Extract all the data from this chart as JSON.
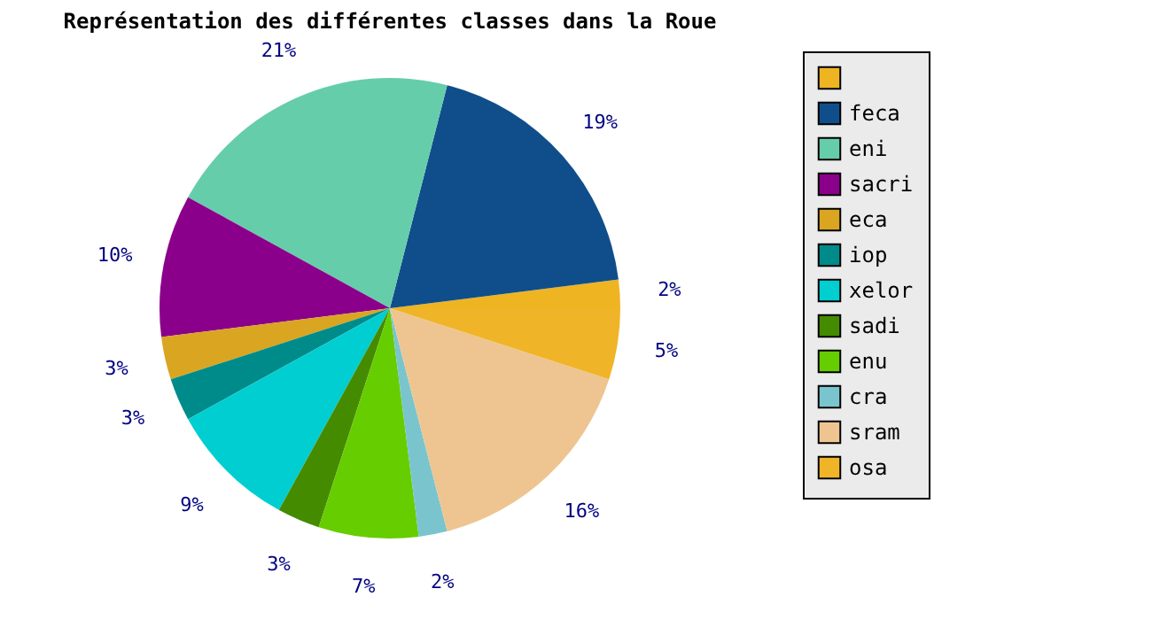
{
  "chart_data": {
    "type": "pie",
    "title": "Représentation des différentes classes dans la Roue",
    "categories": [
      null,
      "feca",
      "eni",
      "sacri",
      "eca",
      "iop",
      "xelor",
      "sadi",
      "enu",
      "cra",
      "sram",
      "osa"
    ],
    "values": [
      2,
      19,
      21,
      10,
      3,
      3,
      9,
      3,
      7,
      2,
      16,
      5
    ],
    "value_labels": [
      "2%",
      "19%",
      "21%",
      "10%",
      "3%",
      "3%",
      "9%",
      "3%",
      "7%",
      "2%",
      "16%",
      "5%"
    ],
    "colors": [
      "#eeb422",
      "#104e8b",
      "#66cdaa",
      "#8b008b",
      "#daa520",
      "#008b8b",
      "#00ced1",
      "#458b00",
      "#66cd00",
      "#7ac5cd",
      "#eec591",
      "#f0b428"
    ],
    "legend": "right"
  }
}
